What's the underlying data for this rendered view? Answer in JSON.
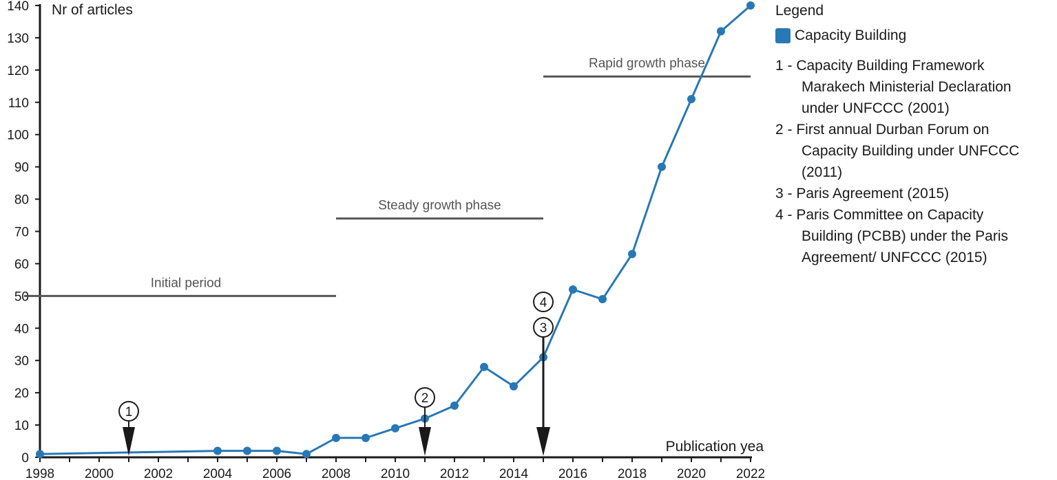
{
  "chart_data": {
    "type": "line",
    "ylabel": "Nr of articles",
    "xlabel": "Publication year",
    "ylim": [
      0,
      140
    ],
    "xlim": [
      1998,
      2022
    ],
    "y_ticks": [
      "0",
      "10",
      "20",
      "30",
      "40",
      "50",
      "60",
      "70",
      "80",
      "90",
      "100",
      "110",
      "120",
      "130",
      "140"
    ],
    "x_ticks": [
      "1998",
      "2000",
      "2002",
      "2004",
      "2006",
      "2008",
      "2010",
      "2012",
      "2014",
      "2016",
      "2018",
      "2020",
      "2022"
    ],
    "series": [
      {
        "name": "Capacity Building",
        "color": "#2878b5",
        "points": [
          {
            "x": 1998,
            "y": 1
          },
          {
            "x": 2004,
            "y": 2
          },
          {
            "x": 2005,
            "y": 2
          },
          {
            "x": 2006,
            "y": 2
          },
          {
            "x": 2007,
            "y": 1
          },
          {
            "x": 2008,
            "y": 6
          },
          {
            "x": 2009,
            "y": 6
          },
          {
            "x": 2010,
            "y": 9
          },
          {
            "x": 2011,
            "y": 12
          },
          {
            "x": 2012,
            "y": 16
          },
          {
            "x": 2013,
            "y": 28
          },
          {
            "x": 2014,
            "y": 22
          },
          {
            "x": 2015,
            "y": 31
          },
          {
            "x": 2016,
            "y": 52
          },
          {
            "x": 2017,
            "y": 49
          },
          {
            "x": 2018,
            "y": 63
          },
          {
            "x": 2019,
            "y": 90
          },
          {
            "x": 2020,
            "y": 111
          },
          {
            "x": 2021,
            "y": 132
          },
          {
            "x": 2022,
            "y": 140
          }
        ]
      }
    ],
    "phases": [
      {
        "label": "Initial period",
        "x_start": 1998,
        "x_end": 2008,
        "y": 50
      },
      {
        "label": "Steady growth phase",
        "x_start": 2008,
        "x_end": 2015,
        "y": 74
      },
      {
        "label": "Rapid growth phase",
        "x_start": 2015,
        "x_end": 2022,
        "y": 118
      }
    ],
    "event_markers": [
      {
        "numbers": [
          "1"
        ],
        "year": 2001
      },
      {
        "numbers": [
          "2"
        ],
        "year": 2011
      },
      {
        "numbers": [
          "3",
          "4"
        ],
        "year": 2015
      }
    ],
    "legend": {
      "title": "Legend",
      "placement": "right",
      "notes": [
        {
          "lines": [
            "1 - Capacity Building  Framework",
            "Marakech Ministerial Declaration",
            "under UNFCCC (2001)"
          ]
        },
        {
          "lines": [
            "2 - First annual Durban Forum on",
            "Capacity Building under UNFCCC",
            "(2011)"
          ]
        },
        {
          "lines": [
            "3 - Paris Agreement (2015)"
          ]
        },
        {
          "lines": [
            "4 - Paris Committee on Capacity",
            "Building (PCBB) under the Paris",
            "Agreement/ UNFCCC (2015)"
          ]
        }
      ]
    },
    "grid": false
  }
}
